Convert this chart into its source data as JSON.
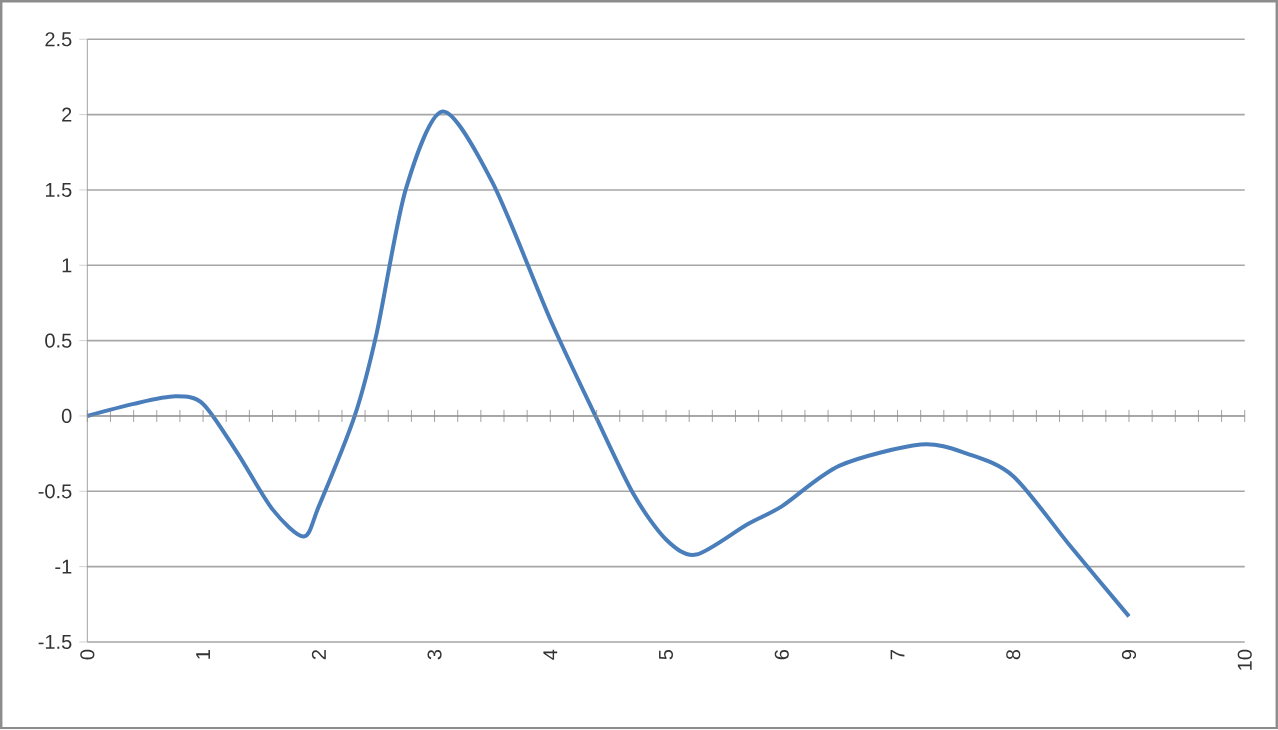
{
  "chart_data": {
    "type": "line",
    "x": [
      0,
      0.4,
      0.76,
      1,
      1.3,
      1.6,
      1.87,
      2,
      2.31,
      2.5,
      2.75,
      3.07,
      3.5,
      4,
      4.39,
      4.72,
      5,
      5.26,
      5.7,
      6,
      6.5,
      7.2,
      7.6,
      8,
      8.5,
      9
    ],
    "series": [
      {
        "color": "#4a7ebb",
        "values": [
          0,
          0.08,
          0.13,
          0.08,
          -0.25,
          -0.62,
          -0.8,
          -0.6,
          0,
          0.55,
          1.5,
          2.02,
          1.55,
          0.64,
          0,
          -0.52,
          -0.82,
          -0.92,
          -0.72,
          -0.6,
          -0.33,
          -0.19,
          -0.25,
          -0.4,
          -0.87,
          -1.33
        ]
      }
    ],
    "xlim": [
      0,
      10
    ],
    "xticks": [
      0,
      1,
      2,
      3,
      4,
      5,
      6,
      7,
      8,
      9,
      10
    ],
    "ylim": [
      -1.5,
      2.5
    ],
    "yticks": [
      -1.5,
      -1,
      -0.5,
      0,
      0.5,
      1,
      1.5,
      2,
      2.5
    ],
    "grid": "y",
    "marker": "none",
    "line_style": "solid"
  }
}
